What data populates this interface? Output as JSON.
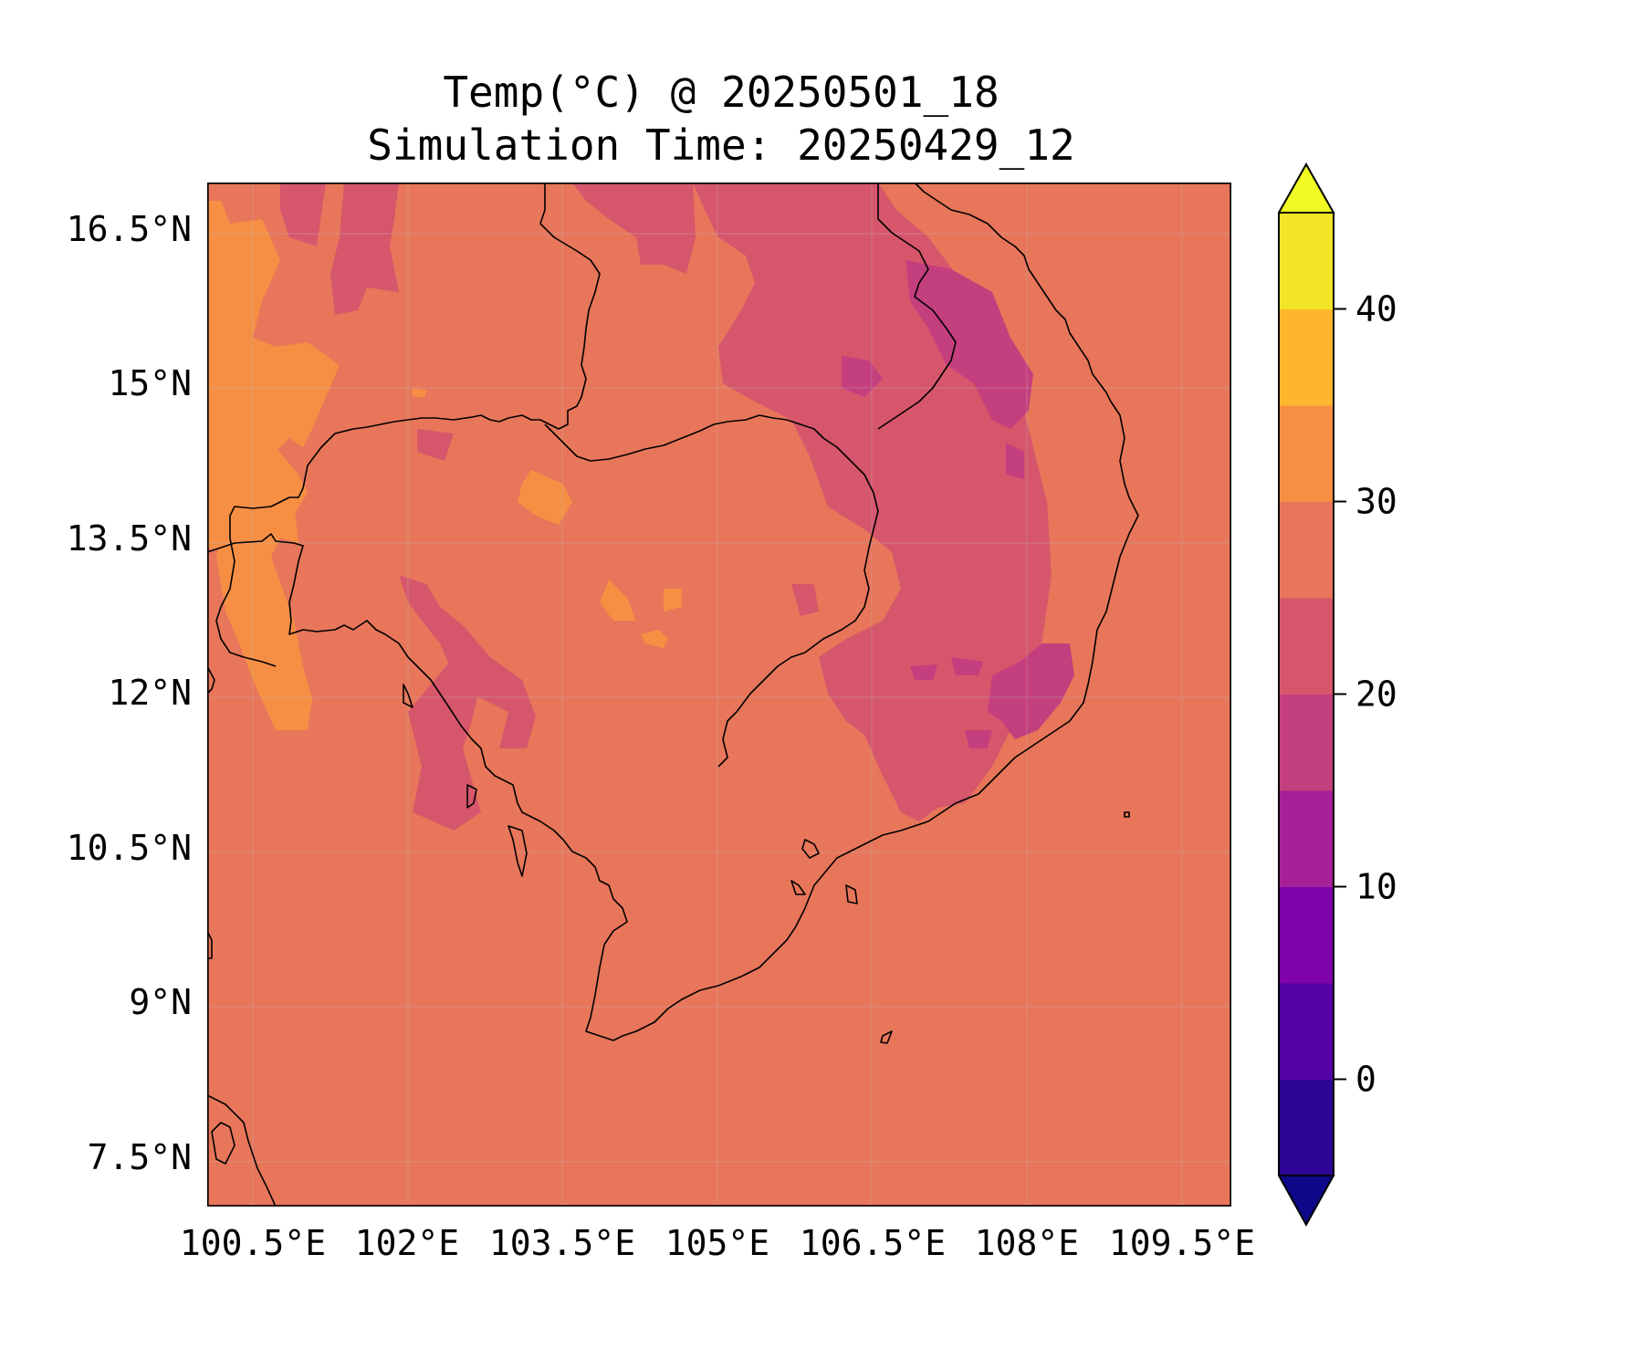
{
  "title": {
    "line1": "Temp(°C) @ 20250501_18",
    "line2": "Simulation Time: 20250429_12"
  },
  "map": {
    "lon_range": [
      100.0,
      110.0
    ],
    "lat_range": [
      7.0,
      17.0
    ],
    "background_value_c": 28,
    "lat_ticks": [
      "16.5°N",
      "15°N",
      "13.5°N",
      "12°N",
      "10.5°N",
      "9°N",
      "7.5°N"
    ],
    "lon_ticks": [
      "100.5°E",
      "102°E",
      "103.5°E",
      "105°E",
      "106.5°E",
      "108°E",
      "109.5°E"
    ],
    "grid": true
  },
  "colorbar": {
    "ticks": [
      "40",
      "30",
      "20",
      "10",
      "0"
    ],
    "levels": [
      -5,
      0,
      5,
      10,
      15,
      20,
      25,
      30,
      35,
      40,
      45
    ],
    "extend": "both",
    "colors": [
      "#0d0887",
      "#2c0594",
      "#5402a3",
      "#7e03a8",
      "#a62098",
      "#c43f7e",
      "#d6566c",
      "#e8765a",
      "#f68f44",
      "#feb72d",
      "#f2e427",
      "#f0f921"
    ]
  },
  "colors": {
    "ocean_land_base": "#e8765a",
    "band_20_25": "#d6566c",
    "band_15_20": "#c43f7e",
    "band_30_35": "#f68f44",
    "coastline": "#000000"
  }
}
